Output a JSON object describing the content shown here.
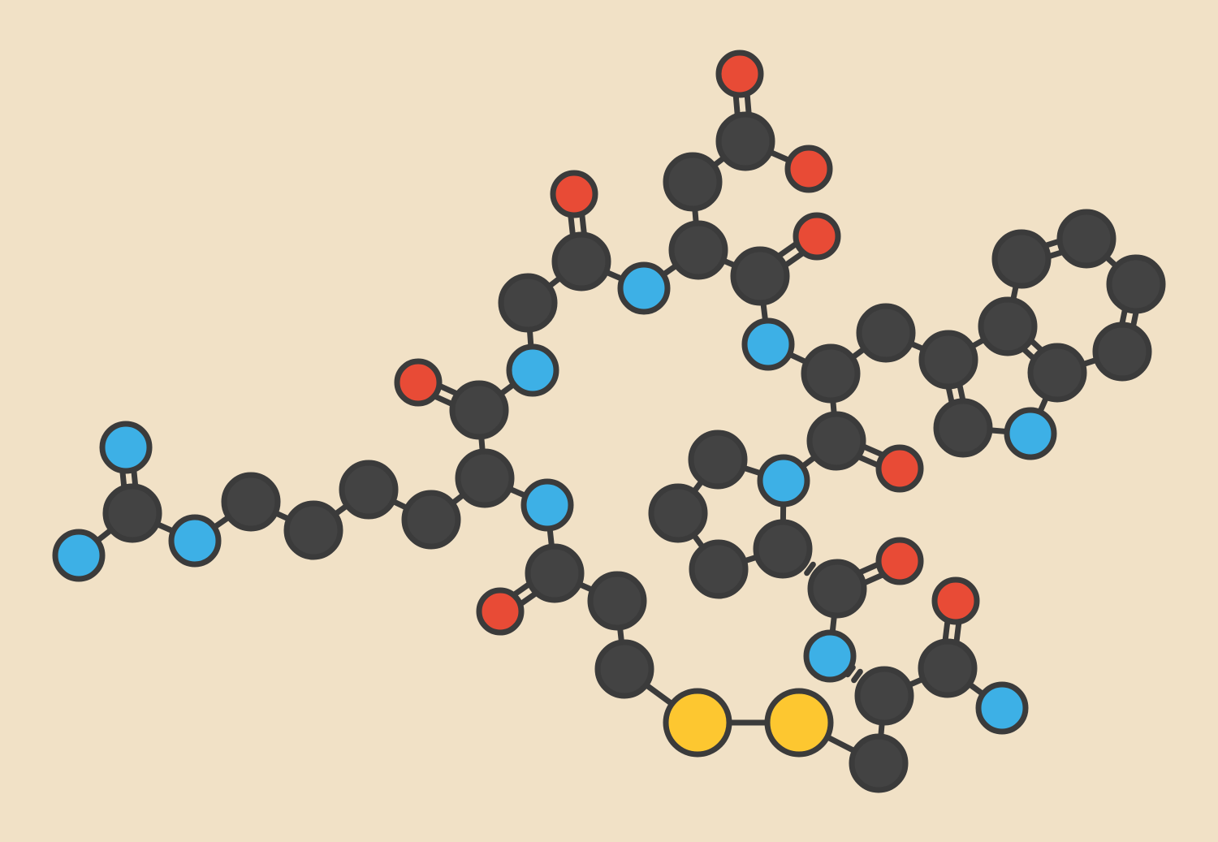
{
  "scene": {
    "type": "ball-and-stick molecular illustration",
    "background_color": "#f1e1c6",
    "element_colors": {
      "carbon": "#434343",
      "nitrogen": "#3db0e6",
      "oxygen": "#e84b36",
      "sulfur": "#fdc730",
      "outline": "#3b3b3b"
    }
  }
}
